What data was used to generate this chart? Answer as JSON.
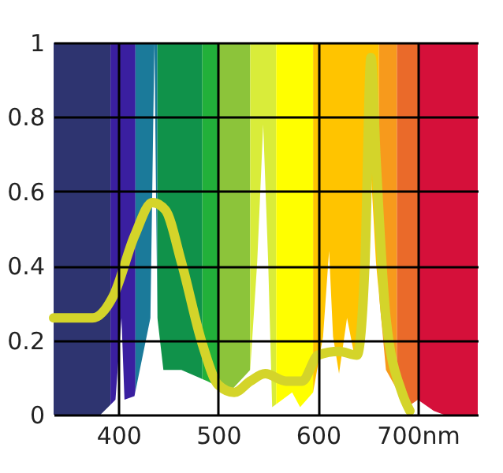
{
  "chart_data": {
    "type": "line",
    "xlim": [
      335,
      760
    ],
    "ylim": [
      0,
      1
    ],
    "xticks": [
      400,
      500,
      600,
      {
        "value": 700,
        "label": "700nm"
      }
    ],
    "yticks": [
      0,
      0.2,
      0.4,
      0.6,
      0.8,
      1
    ],
    "grid": true,
    "bands": [
      {
        "axis": "x",
        "from": 335,
        "to": 392,
        "color": "#2e3470"
      },
      {
        "axis": "x",
        "from": 392,
        "to": 417,
        "color": "#3a1fa0"
      },
      {
        "axis": "x",
        "from": 417,
        "to": 439,
        "color": "#1b7a9a"
      },
      {
        "axis": "x",
        "from": 439,
        "to": 484,
        "color": "#10924a"
      },
      {
        "axis": "x",
        "from": 484,
        "to": 500,
        "color": "#22b03a"
      },
      {
        "axis": "x",
        "from": 500,
        "to": 532,
        "color": "#8cc43a"
      },
      {
        "axis": "x",
        "from": 532,
        "to": 558,
        "color": "#d9ec3a"
      },
      {
        "axis": "x",
        "from": 558,
        "to": 595,
        "color": "#ffff00"
      },
      {
        "axis": "x",
        "from": 595,
        "to": 661,
        "color": "#ffc400"
      },
      {
        "axis": "x",
        "from": 661,
        "to": 679,
        "color": "#f79a1c"
      },
      {
        "axis": "x",
        "from": 679,
        "to": 700,
        "color": "#ea6a2a"
      },
      {
        "axis": "x",
        "from": 700,
        "to": 760,
        "color": "#d5103a"
      }
    ],
    "series": [
      {
        "type": "area",
        "color": "#ffffff",
        "x": [
          335,
          382,
          397,
          403,
          406,
          416,
          432,
          436,
          439,
          445,
          463,
          489,
          511,
          532,
          539,
          545,
          550,
          554,
          574,
          582,
          595,
          605,
          611,
          615,
          621,
          629,
          637,
          647,
          653,
          658,
          668,
          689,
          700,
          716,
          726,
          760
        ],
        "values": [
          0,
          0,
          0.04,
          0.26,
          0.04,
          0.05,
          0.26,
          1.0,
          0.26,
          0.12,
          0.12,
          0.09,
          0.06,
          0.12,
          0.41,
          0.78,
          0.41,
          0.02,
          0.06,
          0.02,
          0.06,
          0.21,
          0.44,
          0.21,
          0.11,
          0.26,
          0.15,
          0.41,
          0.65,
          0.41,
          0.12,
          0.02,
          0.04,
          0.01,
          0,
          0
        ]
      },
      {
        "type": "line",
        "color": "#d4d42a",
        "x": [
          335,
          374,
          395,
          416,
          434,
          447,
          463,
          484,
          500,
          516,
          532,
          547,
          568,
          584,
          600,
          621,
          639,
          647,
          653,
          658,
          668,
          684,
          692
        ],
        "values": [
          0.26,
          0.26,
          0.32,
          0.48,
          0.57,
          0.55,
          0.41,
          0.19,
          0.08,
          0.06,
          0.09,
          0.11,
          0.09,
          0.09,
          0.16,
          0.17,
          0.16,
          0.41,
          0.96,
          0.69,
          0.26,
          0.06,
          0.01
        ]
      }
    ]
  }
}
